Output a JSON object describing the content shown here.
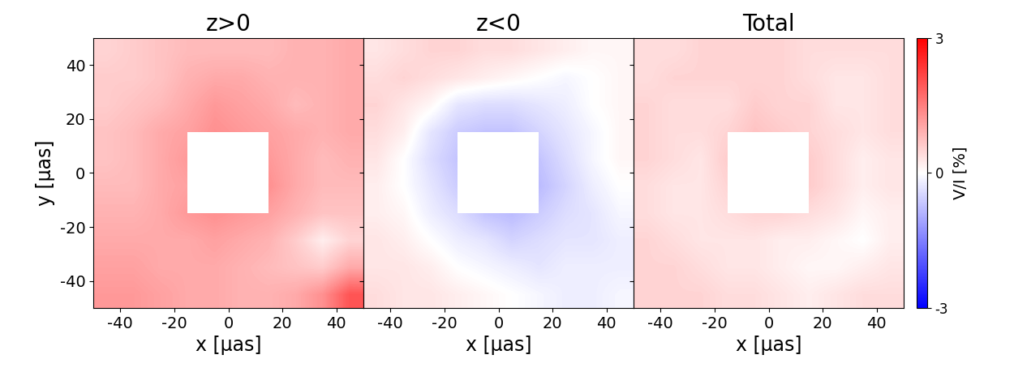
{
  "chart_data": [
    {
      "type": "heatmap",
      "title": "z>0",
      "x_label": "x [μas]",
      "y_label": "y [μas]",
      "xlim": [
        -50,
        50
      ],
      "ylim": [
        -50,
        50
      ],
      "xticks": [
        -40,
        -20,
        0,
        20,
        40
      ],
      "yticks": [
        -40,
        -20,
        0,
        20,
        40
      ],
      "cells": [
        [
          0.5,
          0.6,
          0.7,
          0.8,
          0.8,
          0.8,
          0.8,
          0.9,
          0.9,
          1.0
        ],
        [
          0.6,
          0.6,
          0.7,
          0.9,
          1.0,
          1.0,
          0.9,
          0.9,
          0.9,
          1.0
        ],
        [
          0.6,
          0.7,
          0.8,
          1.0,
          1.2,
          1.1,
          1.0,
          0.8,
          0.9,
          1.0
        ],
        [
          0.7,
          0.8,
          1.0,
          1.1,
          1.3,
          1.2,
          1.1,
          1.0,
          0.9,
          1.0
        ],
        [
          0.7,
          0.8,
          1.0,
          1.2,
          null,
          null,
          1.2,
          1.0,
          0.8,
          0.9
        ],
        [
          0.8,
          0.8,
          1.0,
          1.1,
          null,
          null,
          1.3,
          1.0,
          0.8,
          0.8
        ],
        [
          0.9,
          0.9,
          1.0,
          1.2,
          1.3,
          1.2,
          1.1,
          0.9,
          0.7,
          0.7
        ],
        [
          1.0,
          1.0,
          1.0,
          1.0,
          1.1,
          1.0,
          0.9,
          0.6,
          0.2,
          0.5
        ],
        [
          1.1,
          1.1,
          1.0,
          1.0,
          1.0,
          0.9,
          0.8,
          0.7,
          0.6,
          1.0
        ],
        [
          1.2,
          1.2,
          1.1,
          1.0,
          1.0,
          0.9,
          0.9,
          1.0,
          1.3,
          2.0
        ]
      ]
    },
    {
      "type": "heatmap",
      "title": "z<0",
      "x_label": "x [μas]",
      "tick_labels": "x",
      "xlim": [
        -50,
        50
      ],
      "ylim": [
        -50,
        50
      ],
      "xticks": [
        -40,
        -20,
        0,
        20,
        40
      ],
      "yticks": [
        -40,
        -20,
        0,
        20,
        40
      ],
      "cells": [
        [
          0.3,
          0.4,
          0.5,
          0.5,
          0.4,
          0.4,
          0.3,
          0.2,
          0.1,
          0.1
        ],
        [
          0.4,
          0.5,
          0.4,
          0.3,
          0.2,
          0.1,
          0.0,
          -0.1,
          0.0,
          0.1
        ],
        [
          0.5,
          0.3,
          0.1,
          -0.3,
          -0.4,
          -0.4,
          -0.3,
          -0.2,
          0.0,
          0.1
        ],
        [
          0.4,
          0.2,
          -0.3,
          -0.6,
          -0.7,
          -0.7,
          -0.5,
          -0.3,
          -0.1,
          0.1
        ],
        [
          0.3,
          0.0,
          -0.4,
          -0.7,
          null,
          null,
          -0.7,
          -0.4,
          -0.1,
          0.1
        ],
        [
          0.2,
          0.0,
          -0.3,
          -0.6,
          null,
          null,
          -0.8,
          -0.5,
          -0.2,
          0.0
        ],
        [
          0.2,
          0.1,
          -0.2,
          -0.4,
          -0.7,
          -0.8,
          -0.6,
          -0.4,
          -0.3,
          -0.1
        ],
        [
          0.3,
          0.2,
          0.0,
          -0.2,
          -0.3,
          -0.5,
          -0.4,
          -0.3,
          -0.3,
          -0.2
        ],
        [
          0.3,
          0.3,
          0.2,
          0.0,
          -0.1,
          -0.2,
          -0.3,
          -0.2,
          -0.2,
          -0.2
        ],
        [
          0.4,
          0.3,
          0.3,
          0.2,
          0.1,
          0.0,
          -0.1,
          -0.2,
          -0.2,
          -0.1
        ]
      ]
    },
    {
      "type": "heatmap",
      "title": "Total",
      "x_label": "x [μas]",
      "tick_labels": "x",
      "xlim": [
        -50,
        50
      ],
      "ylim": [
        -50,
        50
      ],
      "xticks": [
        -40,
        -20,
        0,
        20,
        40
      ],
      "yticks": [
        -40,
        -20,
        0,
        20,
        40
      ],
      "cells": [
        [
          0.4,
          0.4,
          0.5,
          0.5,
          0.5,
          0.5,
          0.4,
          0.4,
          0.4,
          0.4
        ],
        [
          0.4,
          0.5,
          0.5,
          0.5,
          0.5,
          0.5,
          0.4,
          0.3,
          0.3,
          0.4
        ],
        [
          0.5,
          0.4,
          0.4,
          0.4,
          0.6,
          0.5,
          0.5,
          0.3,
          0.3,
          0.4
        ],
        [
          0.5,
          0.4,
          0.4,
          0.5,
          0.7,
          0.6,
          0.5,
          0.4,
          0.3,
          0.4
        ],
        [
          0.5,
          0.4,
          0.3,
          0.6,
          null,
          null,
          0.6,
          0.4,
          0.2,
          0.3
        ],
        [
          0.4,
          0.3,
          0.3,
          0.5,
          null,
          null,
          0.6,
          0.4,
          0.2,
          0.3
        ],
        [
          0.4,
          0.3,
          0.3,
          0.4,
          0.5,
          0.5,
          0.4,
          0.3,
          0.1,
          0.2
        ],
        [
          0.5,
          0.4,
          0.3,
          0.3,
          0.3,
          0.2,
          0.2,
          0.1,
          0.0,
          0.2
        ],
        [
          0.5,
          0.5,
          0.4,
          0.3,
          0.3,
          0.2,
          0.1,
          0.1,
          0.2,
          0.3
        ],
        [
          0.5,
          0.5,
          0.5,
          0.4,
          0.4,
          0.3,
          0.2,
          0.3,
          0.4,
          0.4
        ]
      ]
    }
  ],
  "colorbar": {
    "label": "V/I [%]",
    "range": [
      -3,
      3
    ],
    "ticks": [
      -3,
      0,
      3
    ]
  }
}
